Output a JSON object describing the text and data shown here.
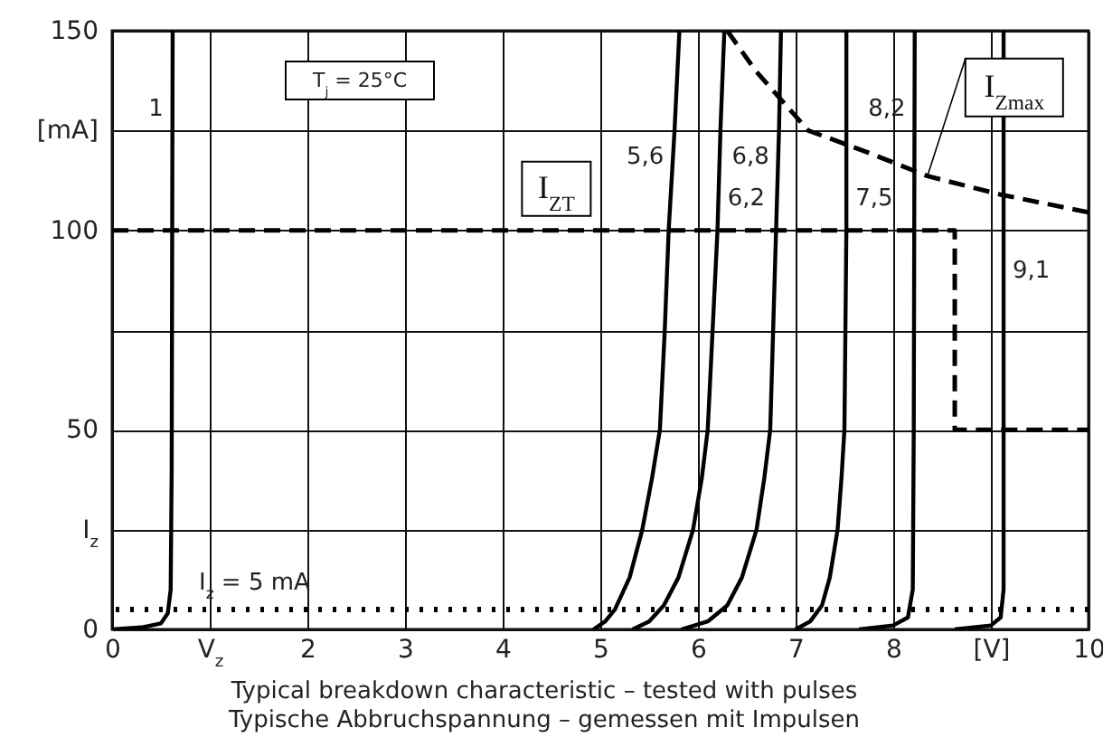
{
  "chart_data": {
    "type": "line",
    "title": "Typical breakdown characteristic – tested with pulses",
    "subtitle": "Typische Abbruchspannung – gemessen mit Impulsen",
    "annotations": [
      "T$_{j}$ = 25°C"
    ],
    "xlim": [
      0,
      10
    ],
    "xticks": [
      0,
      {
        "value": 1,
        "label": "V$_{z}$"
      },
      2,
      3,
      4,
      5,
      6,
      7,
      8,
      {
        "value": 9,
        "label": "[V]"
      },
      10
    ],
    "ylim": [
      0,
      150
    ],
    "yticks": [
      0,
      {
        "value": 25,
        "label": "I$_{z}$"
      },
      50,
      {
        "value": 75,
        "label": null
      },
      100,
      {
        "value": 125,
        "label": "[mA]"
      },
      150
    ],
    "grid": true,
    "ref_lines": [
      {
        "axis": "y",
        "value": 5,
        "label": "I$_{z}$ = 5 mA",
        "line_style": "dotted",
        "color": "#000000"
      }
    ],
    "series": [
      {
        "name": "1",
        "color": "#000000",
        "line_style": "solid",
        "x": [
          0,
          0.3,
          0.5,
          0.57,
          0.6,
          0.61,
          0.62
        ],
        "values": [
          0,
          0.5,
          1.5,
          4,
          10,
          40,
          150
        ]
      },
      {
        "name": "5,6",
        "color": "#000000",
        "line_style": "solid",
        "x": [
          4.93,
          5.05,
          5.15,
          5.3,
          5.43,
          5.53,
          5.61,
          5.66,
          5.7,
          5.76,
          5.81
        ],
        "values": [
          0,
          2,
          5,
          13,
          25,
          38,
          50,
          75,
          100,
          125,
          150
        ]
      },
      {
        "name": "6,2",
        "color": "#000000",
        "line_style": "solid",
        "x": [
          5.33,
          5.5,
          5.65,
          5.8,
          5.95,
          6.04,
          6.1,
          6.15,
          6.2,
          6.23,
          6.27
        ],
        "values": [
          0,
          2,
          6,
          13,
          25,
          38,
          50,
          75,
          100,
          125,
          150
        ]
      },
      {
        "name": "6,8",
        "color": "#000000",
        "line_style": "solid",
        "x": [
          5.83,
          6.1,
          6.3,
          6.45,
          6.6,
          6.68,
          6.74,
          6.77,
          6.8,
          6.83,
          6.85
        ],
        "values": [
          0,
          2,
          6,
          13,
          25,
          38,
          50,
          75,
          100,
          125,
          150
        ]
      },
      {
        "name": "7,5",
        "color": "#000000",
        "line_style": "solid",
        "x": [
          7.0,
          7.15,
          7.27,
          7.35,
          7.43,
          7.47,
          7.5,
          7.51,
          7.52,
          7.52
        ],
        "values": [
          0,
          2,
          6,
          13,
          25,
          38,
          50,
          75,
          100,
          150
        ]
      },
      {
        "name": "8,2",
        "color": "#000000",
        "line_style": "solid",
        "x": [
          7.65,
          8.0,
          8.15,
          8.2,
          8.21,
          8.22
        ],
        "values": [
          0,
          1,
          3,
          10,
          50,
          150
        ]
      },
      {
        "name": "9,1",
        "color": "#000000",
        "line_style": "solid",
        "x": [
          8.63,
          9.0,
          9.1,
          9.13,
          9.13
        ],
        "values": [
          0,
          1,
          3,
          10,
          150
        ]
      },
      {
        "name": "I$_{ZT}$",
        "color": "#000000",
        "line_style": "dashed",
        "x": [
          0,
          8.63,
          8.63,
          10
        ],
        "values": [
          100,
          100,
          50,
          50
        ]
      },
      {
        "name": "I$_{Zmax}$",
        "color": "#000000",
        "line_style": "dashed",
        "x": [
          6.3,
          6.59,
          7.13,
          7.74,
          8.35,
          9.09,
          10
        ],
        "values": [
          150,
          140,
          125,
          119.5,
          113.6,
          109,
          104.5
        ]
      }
    ]
  }
}
